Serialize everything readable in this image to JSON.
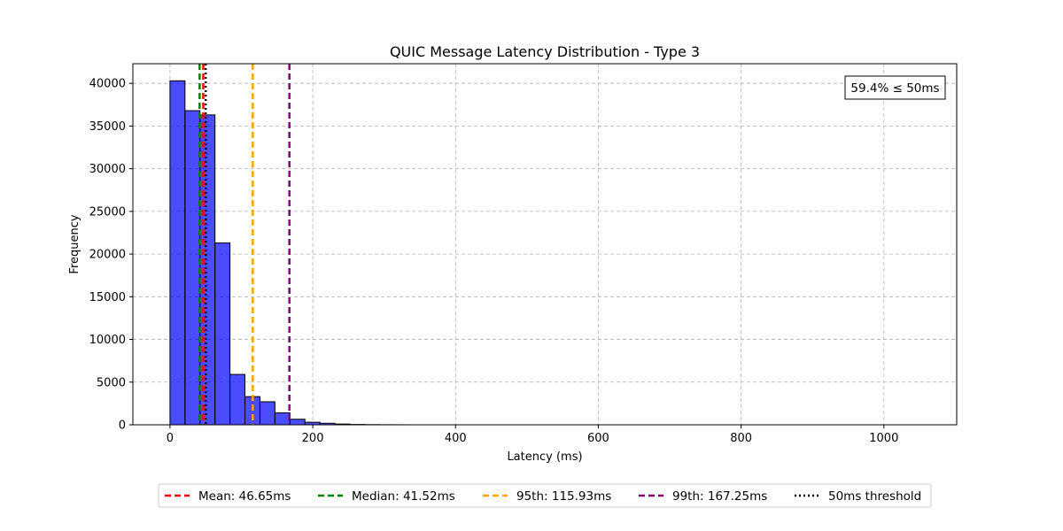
{
  "chart_data": {
    "type": "bar",
    "title": "QUIC Message Latency Distribution - Type 3",
    "xlabel": "Latency (ms)",
    "ylabel": "Frequency",
    "xlim": [
      -52,
      1102
    ],
    "ylim": [
      0,
      42300
    ],
    "xticks": [
      0,
      200,
      400,
      600,
      800,
      1000
    ],
    "yticks": [
      0,
      5000,
      10000,
      15000,
      20000,
      25000,
      30000,
      35000,
      40000
    ],
    "grid": true,
    "bin_width": 21,
    "bins": [
      {
        "start": 0,
        "count": 40300
      },
      {
        "start": 21,
        "count": 36800
      },
      {
        "start": 42,
        "count": 36300
      },
      {
        "start": 63,
        "count": 21300
      },
      {
        "start": 84,
        "count": 5900
      },
      {
        "start": 105,
        "count": 3300
      },
      {
        "start": 126,
        "count": 2700
      },
      {
        "start": 147,
        "count": 1400
      },
      {
        "start": 168,
        "count": 650
      },
      {
        "start": 189,
        "count": 300
      },
      {
        "start": 210,
        "count": 180
      },
      {
        "start": 231,
        "count": 90
      },
      {
        "start": 252,
        "count": 40
      },
      {
        "start": 273,
        "count": 20
      },
      {
        "start": 294,
        "count": 10
      },
      {
        "start": 315,
        "count": 5
      }
    ],
    "bar_color": "#0000ff",
    "vlines": [
      {
        "label": "Mean: 46.65ms",
        "value": 46.65,
        "color": "#ff0000",
        "style": "dashed"
      },
      {
        "label": "Median: 41.52ms",
        "value": 41.52,
        "color": "#008000",
        "style": "dashed"
      },
      {
        "label": "95th: 115.93ms",
        "value": 115.93,
        "color": "#ffa500",
        "style": "dashed"
      },
      {
        "label": "99th: 167.25ms",
        "value": 167.25,
        "color": "#800080",
        "style": "dashed"
      },
      {
        "label": "50ms threshold",
        "value": 50,
        "color": "#000000",
        "style": "dotted"
      }
    ],
    "annotation": "59.4% ≤ 50ms",
    "legend_position": "bottom-center"
  }
}
